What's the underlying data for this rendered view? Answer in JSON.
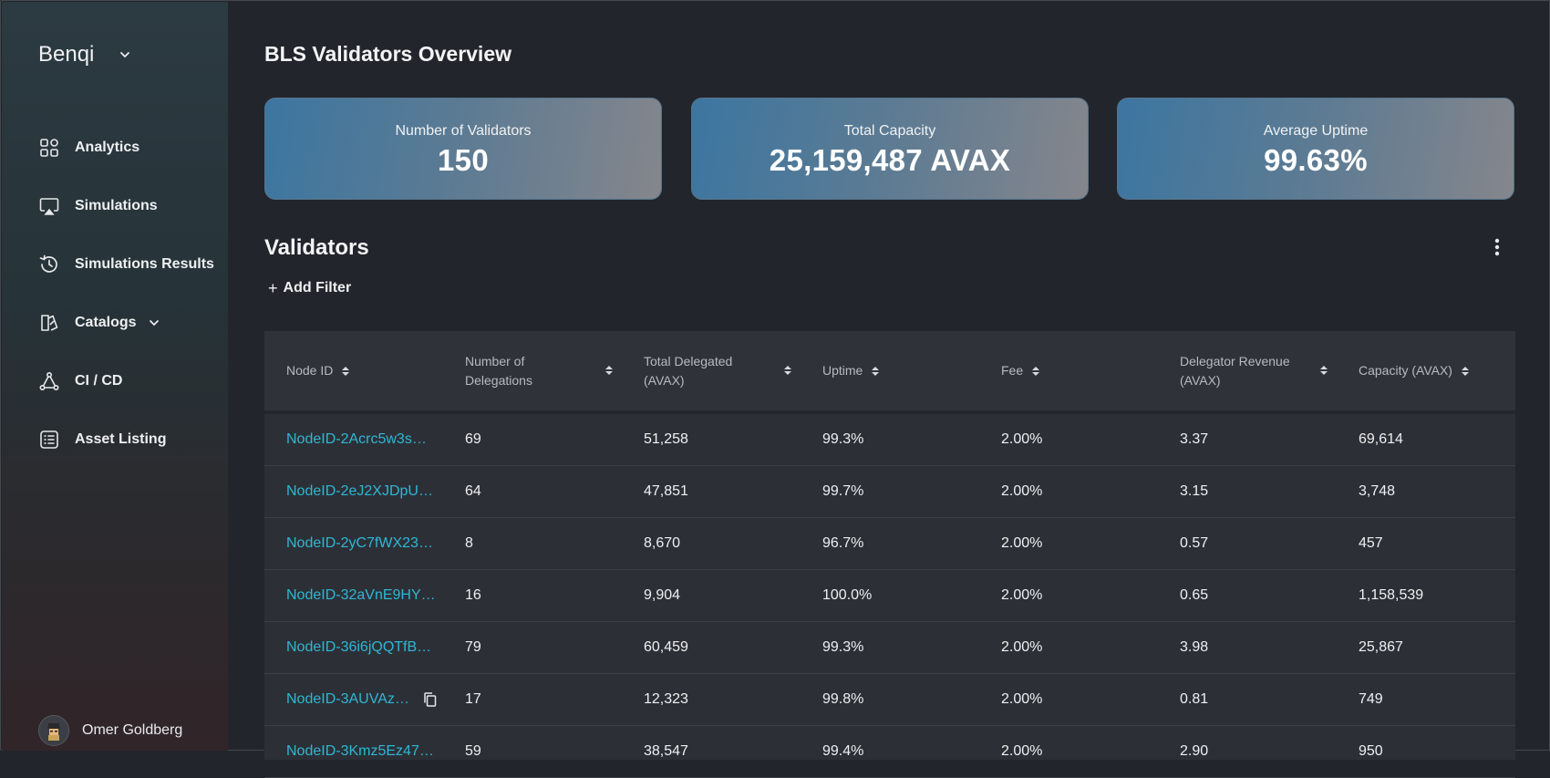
{
  "sidebar": {
    "brand": "Benqi",
    "items": [
      {
        "label": "Analytics"
      },
      {
        "label": "Simulations"
      },
      {
        "label": "Simulations Results"
      },
      {
        "label": "Catalogs"
      },
      {
        "label": "CI / CD"
      },
      {
        "label": "Asset Listing"
      }
    ],
    "user": "Omer Goldberg"
  },
  "main": {
    "title": "BLS Validators Overview",
    "cards": [
      {
        "label": "Number of Validators",
        "value": "150"
      },
      {
        "label": "Total Capacity",
        "value": "25,159,487 AVAX"
      },
      {
        "label": "Average Uptime",
        "value": "99.63%"
      }
    ],
    "section_title": "Validators",
    "add_filter": "Add Filter",
    "table": {
      "headers": [
        "Node ID",
        "Number of Delegations",
        "Total Delegated (AVAX)",
        "Uptime",
        "Fee",
        "Delegator Revenue (AVAX)",
        "Capacity (AVAX)"
      ],
      "rows": [
        [
          "NodeID-2Acrc5w3s…",
          "69",
          "51,258",
          "99.3%",
          "2.00%",
          "3.37",
          "69,614"
        ],
        [
          "NodeID-2eJ2XJDpU…",
          "64",
          "47,851",
          "99.7%",
          "2.00%",
          "3.15",
          "3,748"
        ],
        [
          "NodeID-2yC7fWX23…",
          "8",
          "8,670",
          "96.7%",
          "2.00%",
          "0.57",
          "457"
        ],
        [
          "NodeID-32aVnE9HY…",
          "16",
          "9,904",
          "100.0%",
          "2.00%",
          "0.65",
          "1,158,539"
        ],
        [
          "NodeID-36i6jQQTfB…",
          "79",
          "60,459",
          "99.3%",
          "2.00%",
          "3.98",
          "25,867"
        ],
        [
          "NodeID-3AUVAz…",
          "17",
          "12,323",
          "99.8%",
          "2.00%",
          "0.81",
          "749"
        ],
        [
          "NodeID-3Kmz5Ez47…",
          "59",
          "38,547",
          "99.4%",
          "2.00%",
          "2.90",
          "950"
        ]
      ]
    }
  }
}
